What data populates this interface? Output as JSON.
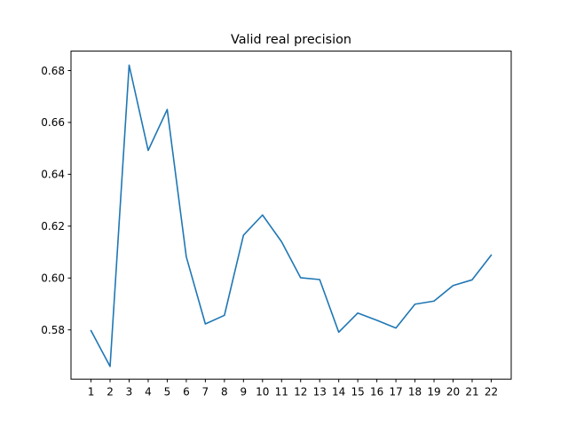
{
  "chart_data": {
    "type": "line",
    "title": "Valid real precision",
    "xlabel": "",
    "ylabel": "",
    "grid": false,
    "legend": "none",
    "x": [
      1,
      2,
      3,
      4,
      5,
      6,
      7,
      8,
      9,
      10,
      11,
      12,
      13,
      14,
      15,
      16,
      17,
      18,
      19,
      20,
      21,
      22
    ],
    "x_tick_labels": [
      "1",
      "2",
      "3",
      "4",
      "5",
      "6",
      "7",
      "8",
      "9",
      "10",
      "11",
      "12",
      "13",
      "14",
      "15",
      "16",
      "17",
      "18",
      "19",
      "20",
      "21",
      "22"
    ],
    "y_ticks": [
      0.58,
      0.6,
      0.62,
      0.64,
      0.66,
      0.68
    ],
    "y_tick_labels": [
      "0.58",
      "0.60",
      "0.62",
      "0.64",
      "0.66",
      "0.68"
    ],
    "xlim": [
      -0.05,
      23.05
    ],
    "ylim": [
      0.561,
      0.6875
    ],
    "series": [
      {
        "color": "#1f77b4",
        "values": [
          0.5797,
          0.5659,
          0.6821,
          0.6492,
          0.665,
          0.6082,
          0.5823,
          0.5856,
          0.6165,
          0.6243,
          0.614,
          0.6001,
          0.5994,
          0.5791,
          0.5865,
          0.5837,
          0.5807,
          0.5899,
          0.5911,
          0.5971,
          0.5993,
          0.6088
        ]
      }
    ]
  }
}
